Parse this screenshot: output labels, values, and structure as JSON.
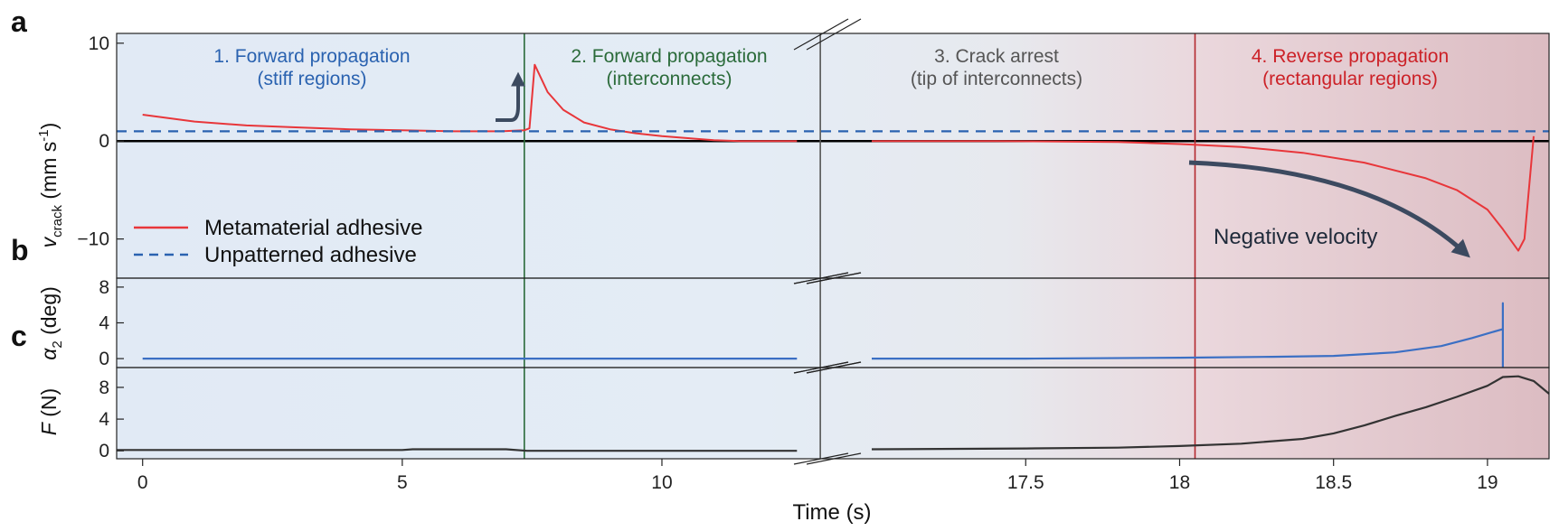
{
  "figure": {
    "panel_labels": [
      "a",
      "b",
      "c"
    ],
    "x_axis_label": "Time (s)",
    "phases": [
      {
        "lines": [
          "1. Forward propagation",
          "(stiff regions)"
        ],
        "color": "#2a62b0"
      },
      {
        "lines": [
          "2. Forward propagation",
          "(interconnects)"
        ],
        "color": "#2b6b3a"
      },
      {
        "lines": [
          "3. Crack arrest",
          "(tip of interconnects)"
        ],
        "color": "#555555"
      },
      {
        "lines": [
          "4. Reverse propagation",
          "(rectangular regions)"
        ],
        "color": "#cc2127"
      }
    ],
    "annotation": "Negative velocity"
  },
  "chart_data": [
    {
      "panel": "a",
      "type": "line",
      "ylabel": {
        "symbol": "v",
        "subscript": "crack",
        "unit_prefix": " (mm s",
        "unit_sup": "-1",
        "unit_suffix": ")"
      },
      "ylim": [
        -14,
        11
      ],
      "yticks": [
        "10",
        "0",
        "−10"
      ],
      "ytick_values": [
        10,
        0,
        -10
      ],
      "xaxis": {
        "broken": true,
        "segment1": {
          "range": [
            -0.5,
            13.1
          ],
          "ticks": [
            0,
            5,
            10
          ]
        },
        "segment2": {
          "range": [
            16.9,
            19.2
          ],
          "ticks": [
            17.5,
            18,
            18.5,
            19
          ]
        }
      },
      "series": [
        {
          "name": "Metamaterial adhesive",
          "color": "#e8363a",
          "style": "solid",
          "segment1": [
            [
              0,
              2.7
            ],
            [
              1,
              2.0
            ],
            [
              2,
              1.6
            ],
            [
              3,
              1.4
            ],
            [
              4,
              1.2
            ],
            [
              5,
              1.1
            ],
            [
              6,
              1.0
            ],
            [
              6.9,
              1.0
            ],
            [
              7.35,
              1.1
            ],
            [
              7.45,
              1.3
            ],
            [
              7.55,
              7.8
            ],
            [
              7.8,
              5.0
            ],
            [
              8.1,
              3.2
            ],
            [
              8.5,
              1.9
            ],
            [
              9.0,
              1.2
            ],
            [
              9.5,
              0.8
            ],
            [
              10,
              0.5
            ],
            [
              10.5,
              0.3
            ],
            [
              11,
              0.1
            ],
            [
              11.5,
              0.0
            ],
            [
              12,
              0.0
            ],
            [
              12.6,
              0.0
            ]
          ],
          "segment2": [
            [
              17.0,
              0.0
            ],
            [
              17.4,
              0.0
            ],
            [
              17.8,
              -0.1
            ],
            [
              18.0,
              -0.3
            ],
            [
              18.2,
              -0.6
            ],
            [
              18.4,
              -1.2
            ],
            [
              18.6,
              -2.2
            ],
            [
              18.8,
              -3.8
            ],
            [
              18.9,
              -5.0
            ],
            [
              19.0,
              -7.0
            ],
            [
              19.05,
              -9.0
            ],
            [
              19.1,
              -11.2
            ],
            [
              19.12,
              -10.0
            ],
            [
              19.15,
              0.5
            ]
          ]
        },
        {
          "name": "Unpatterned adhesive",
          "color": "#2a62b0",
          "style": "dashed",
          "constant": 1.0
        }
      ],
      "phase_boundaries": [
        {
          "x": 7.35,
          "color": "#2b6b3a"
        },
        {
          "x": 13.05,
          "color": "#555555"
        },
        {
          "x": 18.05,
          "color": "#b3282e"
        }
      ]
    },
    {
      "panel": "b",
      "type": "line",
      "ylabel": {
        "symbol": "α",
        "subscript": "2",
        "unit_suffix": " (deg)"
      },
      "ylim": [
        -1,
        9
      ],
      "yticks": [
        "8",
        "4",
        "0"
      ],
      "ytick_values": [
        8,
        4,
        0
      ],
      "series": [
        {
          "name": "",
          "color": "#3b6fc4",
          "segment1": [
            [
              0,
              0
            ],
            [
              12.6,
              0
            ]
          ],
          "segment2": [
            [
              17.0,
              0
            ],
            [
              17.5,
              0
            ],
            [
              18.0,
              0.1
            ],
            [
              18.3,
              0.2
            ],
            [
              18.5,
              0.3
            ],
            [
              18.7,
              0.7
            ],
            [
              18.85,
              1.4
            ],
            [
              18.95,
              2.3
            ],
            [
              19.05,
              3.3
            ],
            [
              19.05,
              6.2
            ],
            [
              19.05,
              -1.0
            ]
          ]
        }
      ]
    },
    {
      "panel": "c",
      "type": "line",
      "ylabel": {
        "symbol": "F",
        "unit_suffix": " (N)"
      },
      "ylim": [
        -1,
        10.5
      ],
      "yticks": [
        "8",
        "4",
        "0"
      ],
      "ytick_values": [
        8,
        4,
        0
      ],
      "series": [
        {
          "name": "",
          "color": "#333333",
          "segment1": [
            [
              -0.5,
              0.1
            ],
            [
              5.0,
              0.1
            ],
            [
              5.2,
              0.2
            ],
            [
              7.0,
              0.2
            ],
            [
              7.4,
              0.0
            ],
            [
              12.6,
              0.0
            ]
          ],
          "segment2": [
            [
              17.0,
              0.2
            ],
            [
              17.5,
              0.3
            ],
            [
              17.8,
              0.4
            ],
            [
              18.0,
              0.6
            ],
            [
              18.2,
              0.9
            ],
            [
              18.4,
              1.5
            ],
            [
              18.5,
              2.2
            ],
            [
              18.6,
              3.2
            ],
            [
              18.7,
              4.4
            ],
            [
              18.8,
              5.5
            ],
            [
              18.9,
              6.8
            ],
            [
              19.0,
              8.2
            ],
            [
              19.05,
              9.3
            ],
            [
              19.1,
              9.4
            ],
            [
              19.15,
              8.8
            ],
            [
              19.2,
              7.2
            ]
          ]
        }
      ]
    }
  ]
}
